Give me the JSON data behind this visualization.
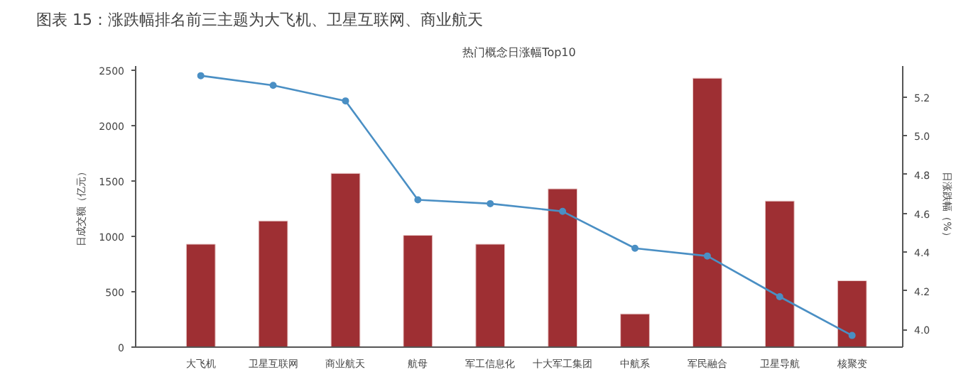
{
  "chart_data": {
    "type": "bar",
    "title": "图表 15：涨跌幅排名前三主题为大飞机、卫星互联网、商业航天",
    "subtitle": "热门概念日涨幅Top10",
    "categories": [
      "大飞机",
      "卫星互联网",
      "商业航天",
      "航母",
      "军工信息化",
      "十大军工集团",
      "中航系",
      "军民融合",
      "卫星导航",
      "核聚变"
    ],
    "ylabel": "日成交额（亿元）",
    "y2label": "日涨跌幅（%）",
    "ylim": [
      0,
      2540
    ],
    "yticks": [
      0,
      500,
      1000,
      1500,
      2000,
      2500
    ],
    "y2lim": [
      3.91,
      5.36
    ],
    "y2ticks": [
      {
        "value": 4.0,
        "label": "4.0"
      },
      4.2,
      4.4,
      4.6,
      4.8,
      {
        "value": 5.0,
        "label": "5.0"
      },
      5.2
    ],
    "series": [
      {
        "color": "#9e2f33",
        "values": [
          930,
          1140,
          1570,
          1010,
          930,
          1430,
          300,
          2430,
          1320,
          600
        ]
      },
      {
        "type": "line",
        "axis": "y2",
        "color": "#4a8fc4",
        "marker": "circle",
        "line_style": "solid",
        "values": [
          5.31,
          5.26,
          5.18,
          4.67,
          4.65,
          4.61,
          4.42,
          4.38,
          4.17,
          3.97
        ]
      }
    ],
    "grid": false
  }
}
